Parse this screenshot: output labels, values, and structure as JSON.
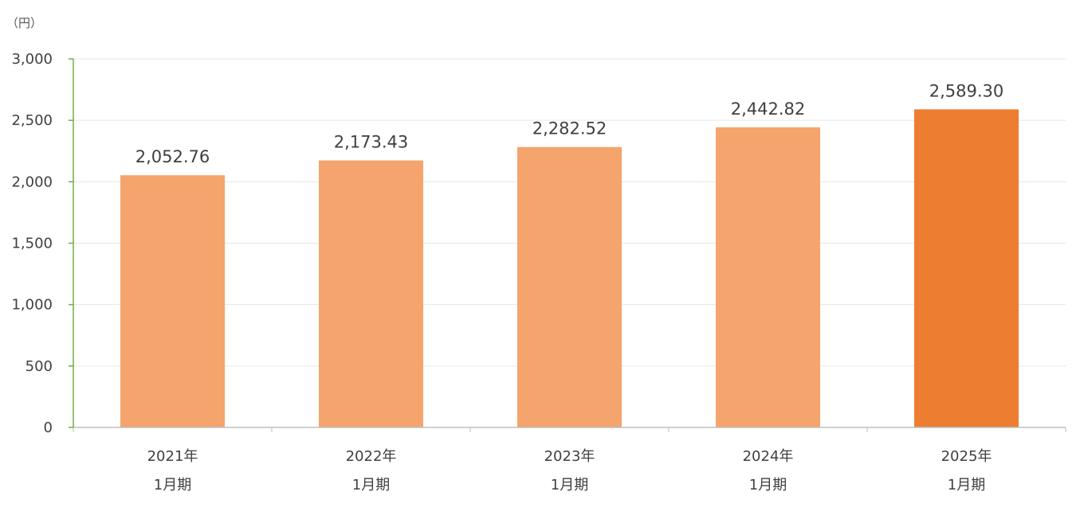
{
  "chart_data": {
    "type": "bar",
    "unit_label": "（円）",
    "categories": [
      [
        "2021年",
        "1月期"
      ],
      [
        "2022年",
        "1月期"
      ],
      [
        "2023年",
        "1月期"
      ],
      [
        "2024年",
        "1月期"
      ],
      [
        "2025年",
        "1月期"
      ]
    ],
    "values": [
      2052.76,
      2173.43,
      2282.52,
      2442.82,
      2589.3
    ],
    "data_labels": [
      "2,052.76",
      "2,173.43",
      "2,282.52",
      "2,442.82",
      "2,589.30"
    ],
    "ylim": [
      0,
      3000
    ],
    "yticks": [
      0,
      500,
      1000,
      1500,
      2000,
      2500,
      3000
    ],
    "ytick_labels": [
      "0",
      "500",
      "1,000",
      "1,500",
      "2,000",
      "2,500",
      "3,000"
    ],
    "grid": true,
    "colors": {
      "bar": "#F4A46C",
      "highlight_bar": "#ED7D31",
      "y_axis": "#70AD47",
      "grid": "#E6E6E6",
      "x_axis": "#BFBFBF"
    },
    "highlight_index": 4
  }
}
